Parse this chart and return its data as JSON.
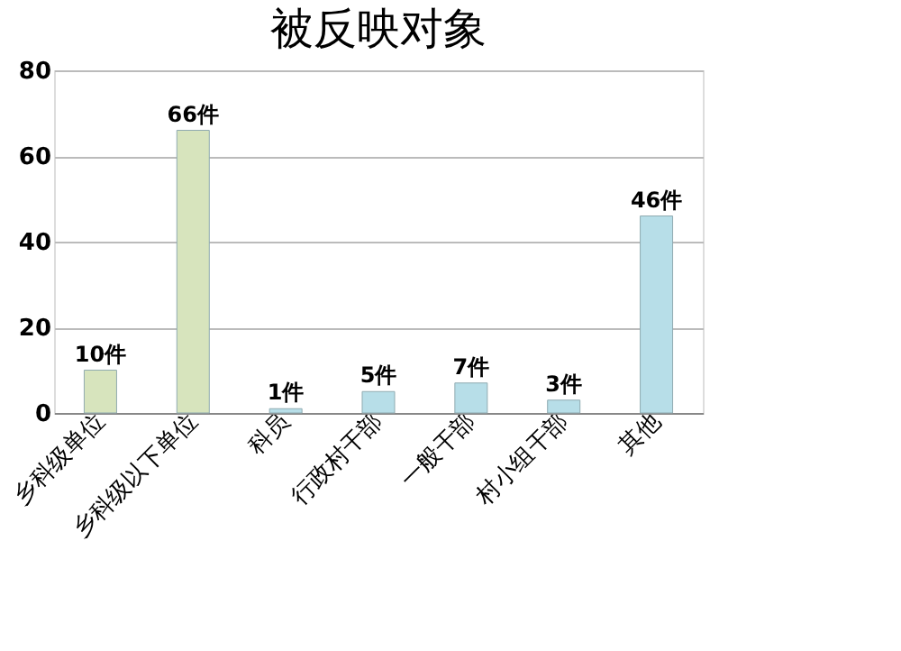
{
  "chart_data": {
    "type": "bar",
    "title": "被反映对象",
    "categories": [
      "乡科级单位",
      "乡科级以下单位",
      "科员",
      "行政村干部",
      "一般干部",
      "村小组干部",
      "其他"
    ],
    "values": [
      10,
      66,
      1,
      5,
      7,
      3,
      46
    ],
    "colors": [
      "#d7e4bd",
      "#d7e4bd",
      "#b7dee8",
      "#b7dee8",
      "#b7dee8",
      "#b7dee8",
      "#b7dee8"
    ],
    "value_labels": [
      "10件",
      "66件",
      "1件",
      "5件",
      "7件",
      "3件",
      "46件"
    ],
    "ylim": [
      0,
      80
    ],
    "yticks": [
      0,
      20,
      40,
      60,
      80
    ],
    "grid": "y"
  }
}
